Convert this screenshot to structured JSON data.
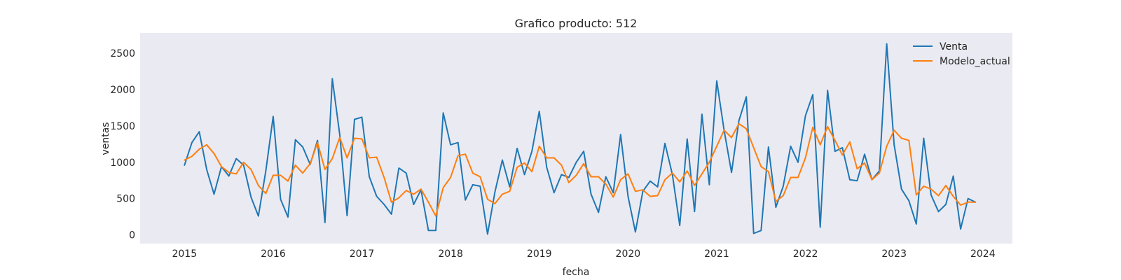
{
  "chart_data": {
    "type": "line",
    "title": "Grafico producto: 512",
    "xlabel": "fecha",
    "ylabel": "ventas",
    "x_start": "2015-01",
    "x_frequency": "monthly",
    "xlim": [
      "2014-07",
      "2024-05"
    ],
    "ylim": [
      -120,
      2780
    ],
    "x_ticks": [
      "2015",
      "2016",
      "2017",
      "2018",
      "2019",
      "2020",
      "2021",
      "2022",
      "2023",
      "2024"
    ],
    "y_ticks": [
      0,
      500,
      1000,
      1500,
      2000,
      2500
    ],
    "grid": false,
    "legend_position": "top-right",
    "background_color": "#eaeaf2",
    "series": [
      {
        "name": "Venta",
        "color": "#1f77b4",
        "values": [
          960,
          1270,
          1420,
          900,
          560,
          940,
          810,
          1050,
          960,
          520,
          260,
          880,
          1630,
          490,
          245,
          1310,
          1210,
          970,
          1300,
          170,
          2150,
          1380,
          265,
          1590,
          1620,
          800,
          530,
          420,
          285,
          920,
          850,
          420,
          620,
          60,
          60,
          1680,
          1240,
          1270,
          480,
          690,
          670,
          10,
          590,
          1030,
          660,
          1190,
          830,
          1150,
          1700,
          930,
          580,
          830,
          790,
          1000,
          1150,
          560,
          310,
          800,
          580,
          1380,
          530,
          40,
          600,
          740,
          660,
          1260,
          830,
          130,
          1320,
          320,
          1660,
          690,
          2120,
          1440,
          860,
          1570,
          1900,
          20,
          60,
          1210,
          380,
          670,
          1220,
          1000,
          1640,
          1930,
          105,
          1990,
          1150,
          1200,
          760,
          745,
          1110,
          760,
          880,
          2630,
          1240,
          630,
          470,
          150,
          1330,
          550,
          320,
          420,
          810,
          80,
          500,
          450
        ]
      },
      {
        "name": "Modelo_actual",
        "color": "#ff7f0e",
        "values": [
          1030,
          1080,
          1180,
          1240,
          1120,
          940,
          860,
          840,
          1000,
          900,
          680,
          570,
          820,
          820,
          740,
          960,
          850,
          980,
          1270,
          900,
          1050,
          1340,
          1060,
          1330,
          1320,
          1060,
          1070,
          790,
          450,
          510,
          610,
          560,
          630,
          450,
          260,
          650,
          790,
          1090,
          1110,
          850,
          800,
          490,
          430,
          560,
          600,
          930,
          990,
          870,
          1220,
          1060,
          1060,
          960,
          720,
          820,
          980,
          800,
          800,
          700,
          520,
          760,
          840,
          600,
          620,
          530,
          540,
          760,
          850,
          730,
          880,
          680,
          840,
          1000,
          1220,
          1440,
          1340,
          1530,
          1460,
          1200,
          940,
          870,
          460,
          540,
          790,
          790,
          1060,
          1480,
          1240,
          1490,
          1300,
          1100,
          1280,
          910,
          990,
          760,
          850,
          1220,
          1440,
          1330,
          1300,
          550,
          670,
          630,
          540,
          680,
          530,
          410,
          450,
          450
        ]
      }
    ]
  }
}
